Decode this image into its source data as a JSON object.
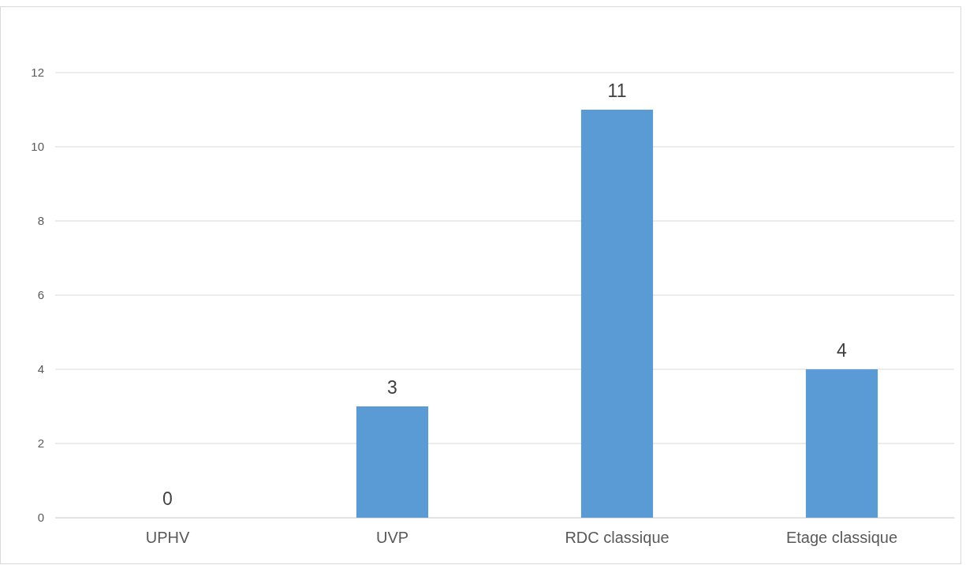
{
  "chart_data": {
    "type": "bar",
    "categories": [
      "UPHV",
      "UVP",
      "RDC classique",
      "Etage classique"
    ],
    "values": [
      0,
      3,
      11,
      4
    ],
    "color": "#5b9bd5",
    "ylim": [
      0,
      12
    ],
    "yticks": [
      0,
      2,
      4,
      6,
      8,
      10,
      12
    ],
    "grid": "y",
    "data_labels": true
  }
}
